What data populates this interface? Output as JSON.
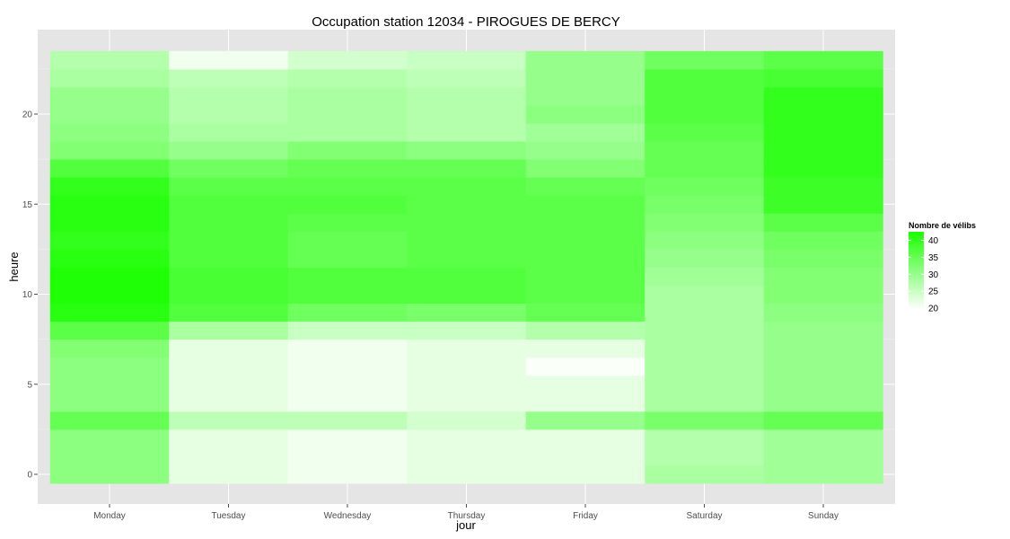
{
  "chart_data": {
    "type": "heatmap",
    "title": "Occupation station 12034 - PIROGUES DE BERCY",
    "xlabel": "jour",
    "ylabel": "heure",
    "x_categories": [
      "Monday",
      "Tuesday",
      "Wednesday",
      "Thursday",
      "Friday",
      "Saturday",
      "Sunday"
    ],
    "y_range": [
      0,
      23
    ],
    "y_ticks": [
      0,
      5,
      10,
      15,
      20
    ],
    "legend_title": "Nombre de vélibs",
    "legend_ticks": [
      20,
      25,
      30,
      35,
      40
    ],
    "color_low": "#ffffff",
    "color_high": "#1aff00",
    "value_range": [
      19.5,
      42.5
    ],
    "background_color": "#e5e5e5",
    "grid": true,
    "legend_position": "right",
    "series": [
      {
        "day": "Monday",
        "values": [
          31,
          31,
          31,
          35,
          31,
          31,
          31,
          32,
          36,
          41,
          42,
          42,
          41,
          40,
          41,
          41,
          40,
          37,
          32,
          31,
          30,
          30,
          28,
          27
        ]
      },
      {
        "day": "Tuesday",
        "values": [
          22,
          22,
          22,
          26,
          22,
          22,
          22,
          22,
          28,
          37,
          38,
          38,
          37,
          37,
          37,
          37,
          36,
          34,
          30,
          28,
          27,
          27,
          26,
          21
        ]
      },
      {
        "day": "Wednesday",
        "values": [
          21,
          21,
          21,
          26,
          21,
          21,
          21,
          21,
          25,
          34,
          37,
          37,
          35,
          35,
          36,
          37,
          36,
          35,
          32,
          28,
          28,
          28,
          27,
          24
        ]
      },
      {
        "day": "Thursday",
        "values": [
          22,
          22,
          22,
          24,
          22,
          22,
          22,
          22,
          25,
          33,
          37,
          37,
          36,
          36,
          36,
          36,
          36,
          35,
          31,
          27,
          27,
          27,
          26,
          25
        ]
      },
      {
        "day": "Friday",
        "values": [
          22,
          22,
          22,
          30,
          22,
          22,
          20,
          22,
          27,
          35,
          36,
          36,
          36,
          36,
          36,
          36,
          35,
          32,
          30,
          29,
          31,
          30,
          30,
          30
        ]
      },
      {
        "day": "Saturday",
        "values": [
          28,
          27,
          27,
          33,
          28,
          28,
          28,
          28,
          28,
          28,
          28,
          29,
          30,
          31,
          32,
          33,
          34,
          35,
          35,
          36,
          37,
          37,
          37,
          34
        ]
      },
      {
        "day": "Sunday",
        "values": [
          29,
          29,
          29,
          35,
          30,
          30,
          30,
          30,
          30,
          31,
          32,
          32,
          33,
          34,
          36,
          39,
          39,
          40,
          40,
          40,
          40,
          40,
          38,
          36
        ]
      }
    ]
  }
}
